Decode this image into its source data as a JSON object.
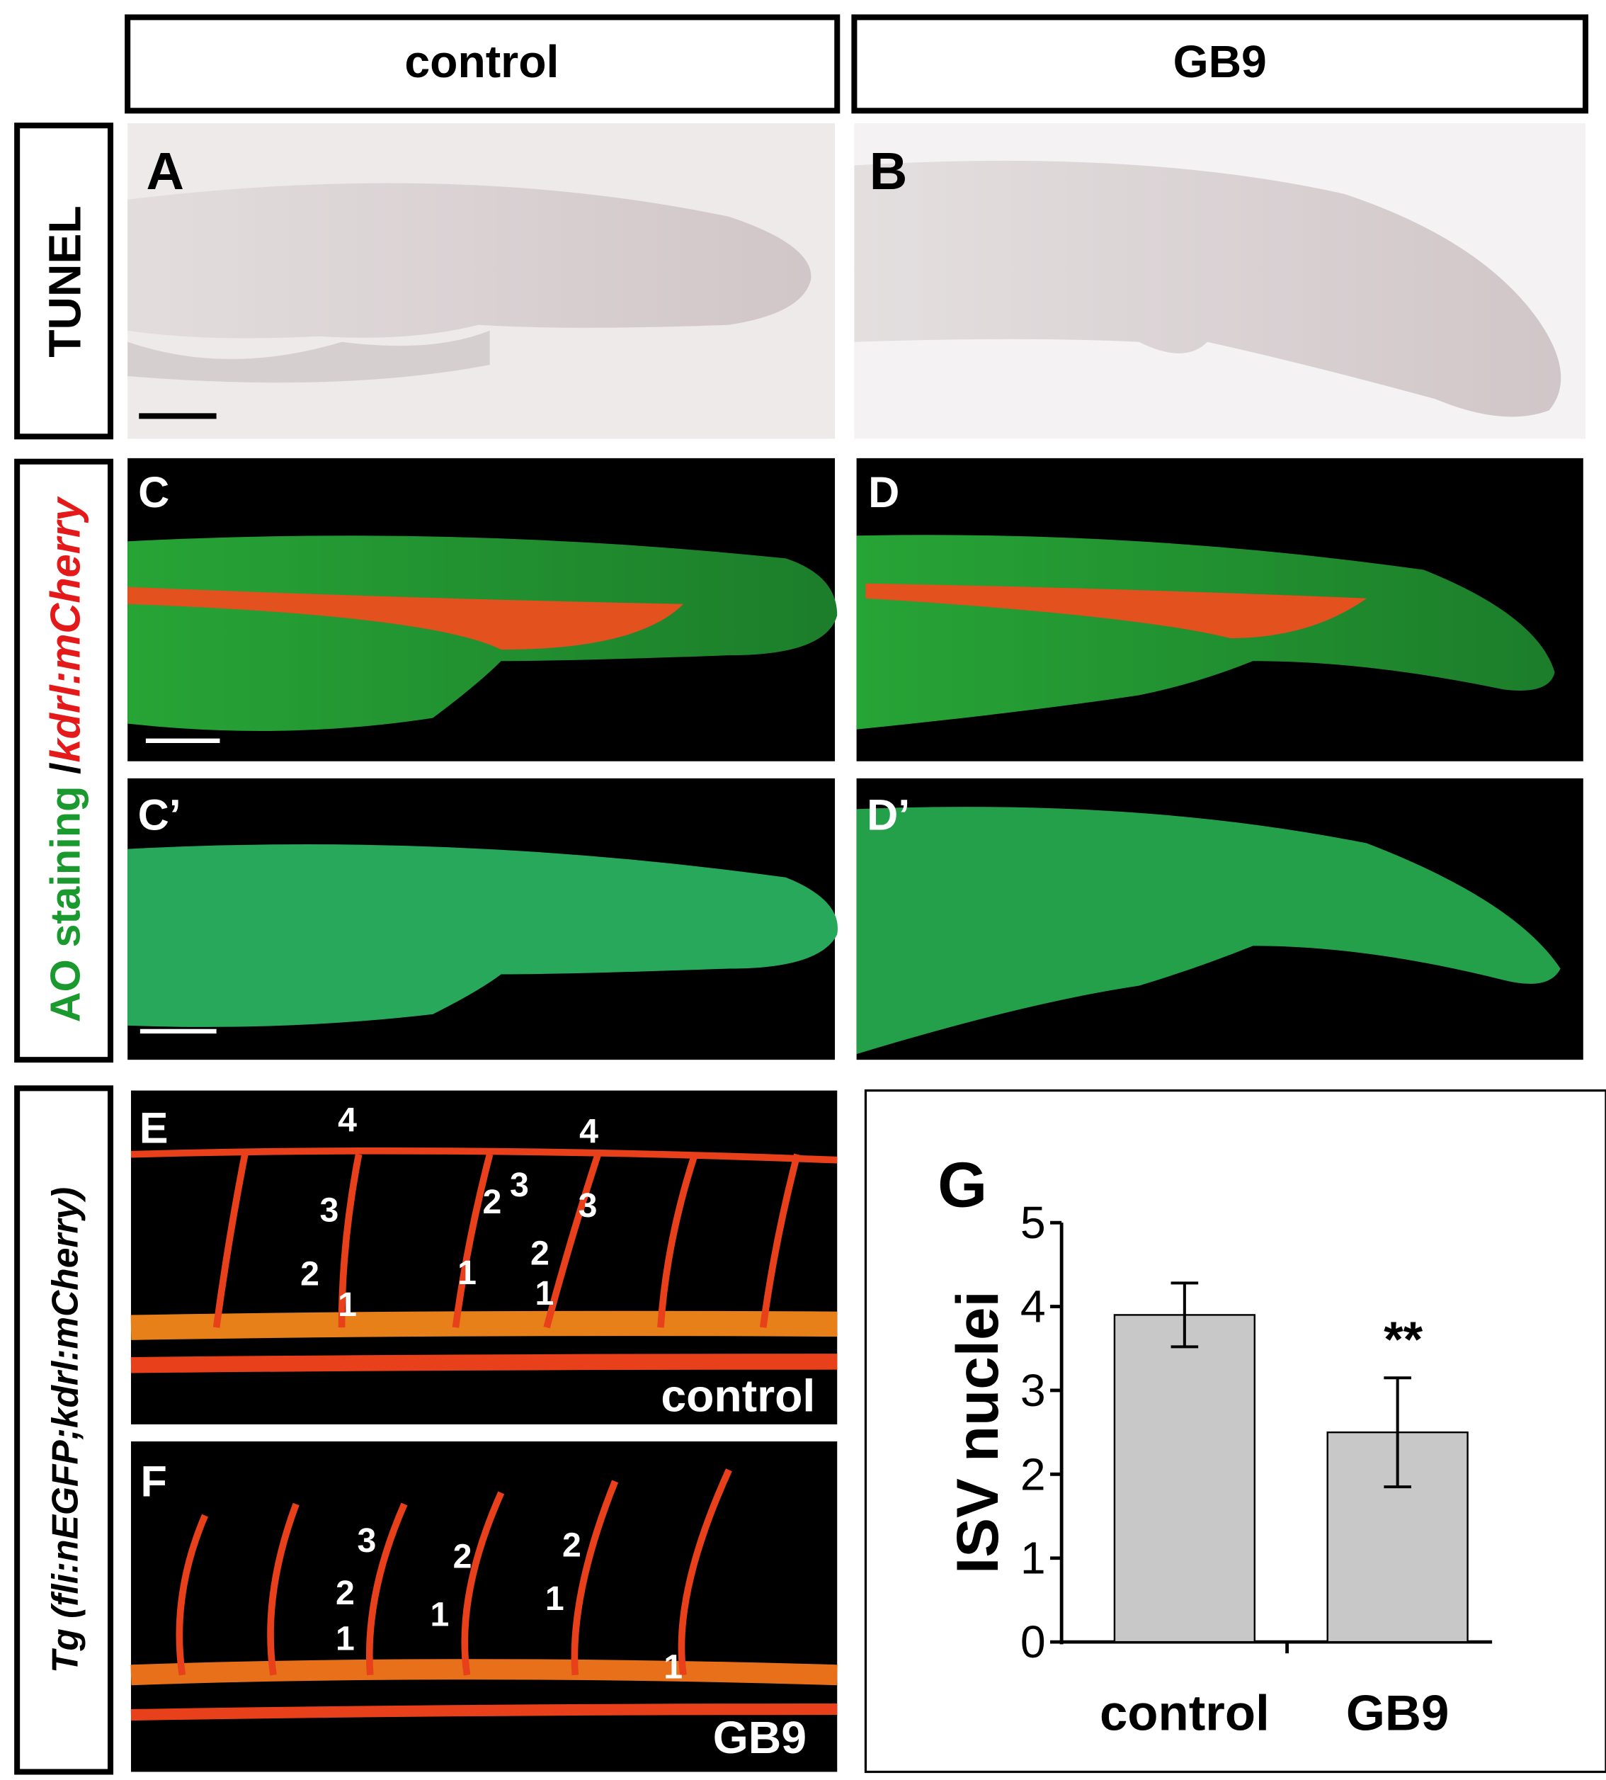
{
  "columns": [
    "control",
    "GB9"
  ],
  "rows": {
    "tunel": "TUNEL",
    "ao": [
      "AO staining",
      " /",
      "kdrl:mCherry"
    ],
    "tg": "Tg (fli:nEGFP;kdrl:mCherry)"
  },
  "panels": {
    "A": "A",
    "B": "B",
    "C": "C",
    "D": "D",
    "C_prime": "C’",
    "D_prime": "D’",
    "E": {
      "letter": "E",
      "caption": "control",
      "numbers": [
        4,
        4,
        3,
        3,
        3,
        2,
        2,
        2,
        1,
        1,
        1
      ]
    },
    "F": {
      "letter": "F",
      "caption": "GB9",
      "numbers": [
        3,
        2,
        2,
        2,
        1,
        1,
        1,
        1
      ]
    },
    "G": "G"
  },
  "chart_data": {
    "type": "bar",
    "ylabel": "ISV nuclei",
    "categories": [
      "control",
      "GB9"
    ],
    "values": [
      3.9,
      2.5
    ],
    "errors": [
      0.38,
      0.65
    ],
    "annotations": [
      null,
      "**"
    ],
    "color": "#c8c8c8",
    "ylim": [
      0,
      5
    ],
    "yticks": [
      0,
      1,
      2,
      3,
      4,
      5
    ]
  }
}
